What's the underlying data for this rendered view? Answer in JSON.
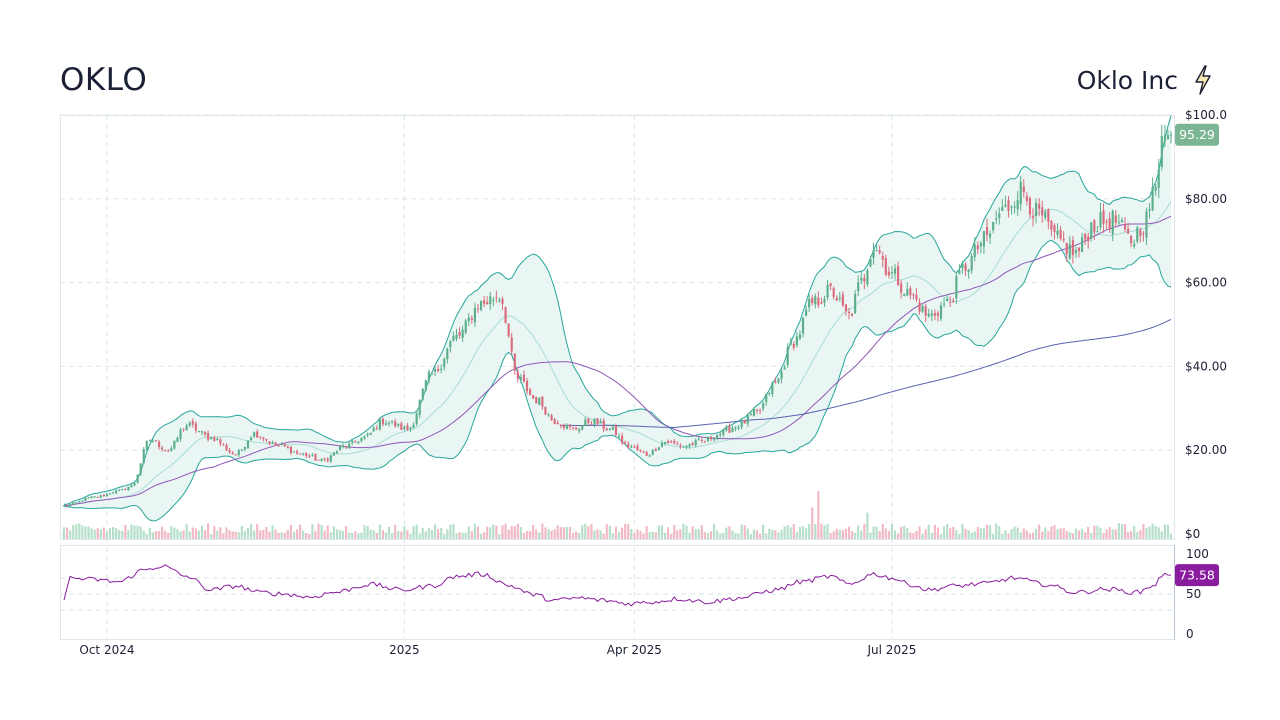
{
  "header": {
    "ticker": "OKLO",
    "company": "Oklo Inc",
    "logo_icon": "lightning-bolt-icon"
  },
  "colors": {
    "up": "#5aae8a",
    "down": "#d96b7c",
    "up_volume": "#b5dfc8",
    "down_volume": "#f2b8c3",
    "band": "#26a69a",
    "band_fill": "#e6f4f2",
    "sma_fast": "#8e58b8",
    "sma_slow": "#5a62b0",
    "rsi": "#8a1d9e",
    "price_badge": "#7cb594",
    "rsi_badge": "#8a1d9e"
  },
  "chart_data": {
    "type": "candlestick",
    "price_axis": {
      "ylim": [
        0,
        100
      ],
      "ticks": [
        "$100.0",
        "$80.00",
        "$60.00",
        "$40.00",
        "$20.00",
        "$0"
      ]
    },
    "rsi_axis": {
      "ylim": [
        0,
        100
      ],
      "ticks": [
        "100",
        "50",
        "0"
      ]
    },
    "x_ticks": [
      "Oct 2024",
      "2025",
      "Apr 2025",
      "Jul 2025"
    ],
    "last_price_label": "95.29",
    "last_rsi_label": "73.58",
    "grid": true,
    "close_anchors": [
      [
        0,
        6.8
      ],
      [
        10,
        8.8
      ],
      [
        18,
        10.3
      ],
      [
        22,
        11.5
      ],
      [
        28,
        22.5
      ],
      [
        34,
        20.0
      ],
      [
        40,
        26.0
      ],
      [
        48,
        23.0
      ],
      [
        56,
        19.0
      ],
      [
        62,
        24.0
      ],
      [
        70,
        21.0
      ],
      [
        78,
        19.0
      ],
      [
        84,
        17.5
      ],
      [
        92,
        21.0
      ],
      [
        98,
        23.0
      ],
      [
        104,
        27.0
      ],
      [
        112,
        25.0
      ],
      [
        120,
        38.0
      ],
      [
        128,
        47.0
      ],
      [
        136,
        55.0
      ],
      [
        142,
        57.0
      ],
      [
        148,
        37.0
      ],
      [
        154,
        32.0
      ],
      [
        160,
        27.0
      ],
      [
        166,
        25.0
      ],
      [
        172,
        27.0
      ],
      [
        178,
        25.0
      ],
      [
        184,
        21.0
      ],
      [
        190,
        19.0
      ],
      [
        196,
        22.0
      ],
      [
        202,
        21.0
      ],
      [
        208,
        22.0
      ],
      [
        214,
        24.0
      ],
      [
        220,
        26.0
      ],
      [
        226,
        29.0
      ],
      [
        232,
        36.0
      ],
      [
        238,
        46.0
      ],
      [
        244,
        55.0
      ],
      [
        250,
        58.0
      ],
      [
        256,
        52.0
      ],
      [
        260,
        60.0
      ],
      [
        264,
        69.0
      ],
      [
        270,
        62.0
      ],
      [
        276,
        57.0
      ],
      [
        282,
        52.0
      ],
      [
        288,
        55.0
      ],
      [
        294,
        64.0
      ],
      [
        300,
        70.0
      ],
      [
        306,
        77.0
      ],
      [
        312,
        82.0
      ],
      [
        318,
        76.0
      ],
      [
        324,
        70.0
      ],
      [
        330,
        67.0
      ],
      [
        336,
        74.0
      ],
      [
        342,
        75.0
      ],
      [
        348,
        70.0
      ],
      [
        352,
        74.0
      ],
      [
        356,
        82.0
      ],
      [
        358,
        95.0
      ],
      [
        361,
        95.29
      ]
    ],
    "rsi_anchors": [
      [
        0,
        45
      ],
      [
        2,
        70
      ],
      [
        10,
        68
      ],
      [
        18,
        65
      ],
      [
        26,
        80
      ],
      [
        32,
        85
      ],
      [
        40,
        72
      ],
      [
        48,
        55
      ],
      [
        56,
        60
      ],
      [
        64,
        52
      ],
      [
        72,
        50
      ],
      [
        80,
        46
      ],
      [
        88,
        52
      ],
      [
        100,
        62
      ],
      [
        110,
        55
      ],
      [
        120,
        60
      ],
      [
        128,
        72
      ],
      [
        136,
        75
      ],
      [
        146,
        60
      ],
      [
        152,
        50
      ],
      [
        160,
        42
      ],
      [
        168,
        45
      ],
      [
        176,
        42
      ],
      [
        184,
        38
      ],
      [
        192,
        40
      ],
      [
        200,
        44
      ],
      [
        210,
        40
      ],
      [
        220,
        45
      ],
      [
        232,
        55
      ],
      [
        240,
        65
      ],
      [
        250,
        72
      ],
      [
        256,
        62
      ],
      [
        264,
        75
      ],
      [
        270,
        70
      ],
      [
        276,
        62
      ],
      [
        282,
        55
      ],
      [
        290,
        60
      ],
      [
        300,
        63
      ],
      [
        310,
        70
      ],
      [
        320,
        62
      ],
      [
        330,
        52
      ],
      [
        340,
        56
      ],
      [
        350,
        52
      ],
      [
        356,
        62
      ],
      [
        358,
        74
      ],
      [
        361,
        73.58
      ]
    ],
    "volume_spikes": [
      [
        28,
        2.2
      ],
      [
        132,
        2.0
      ],
      [
        244,
        3.0
      ],
      [
        246,
        6.0
      ],
      [
        262,
        2.3
      ]
    ]
  }
}
